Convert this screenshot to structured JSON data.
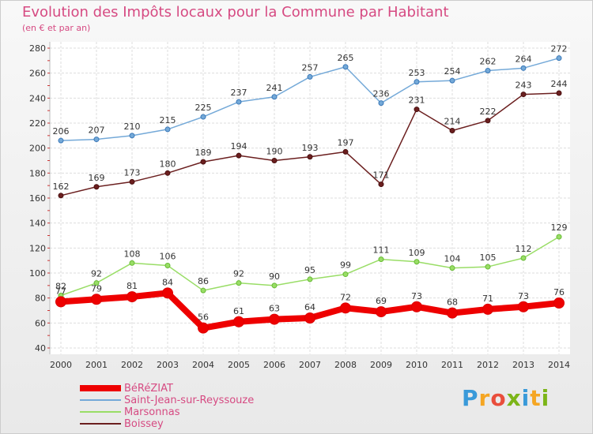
{
  "title": "Evolution des Impôts locaux pour la Commune par Habitant",
  "subtitle": "(en € et par an)",
  "brand": {
    "letters": [
      "P",
      "r",
      "o",
      "x",
      "i",
      "t",
      "i"
    ],
    "colors": [
      "#3a9ad9",
      "#f5a623",
      "#e94e3c",
      "#7cb518",
      "#3a9ad9",
      "#f5a623",
      "#7cb518"
    ]
  },
  "chart_data": {
    "type": "line",
    "title": "Evolution des Impôts locaux pour la Commune par Habitant",
    "subtitle": "(en € et par an)",
    "x": [
      "2000",
      "2001",
      "2002",
      "2003",
      "2004",
      "2005",
      "2006",
      "2007",
      "2008",
      "2009",
      "2010",
      "2011",
      "2012",
      "2013",
      "2014"
    ],
    "ylim": [
      40,
      280
    ],
    "yticks": [
      40,
      60,
      80,
      100,
      120,
      140,
      160,
      180,
      200,
      220,
      240,
      260,
      280
    ],
    "grid": true,
    "legend_position": "bottom-left",
    "series": [
      {
        "name": "BéRéZIAT",
        "color": "#ee0000",
        "values": [
          77,
          79,
          81,
          84,
          56,
          61,
          63,
          64,
          72,
          69,
          73,
          68,
          71,
          73,
          76
        ]
      },
      {
        "name": "Saint-Jean-sur-Reyssouze",
        "color": "#74a9d8",
        "values": [
          206,
          207,
          210,
          215,
          225,
          237,
          241,
          257,
          265,
          236,
          253,
          254,
          262,
          264,
          272
        ]
      },
      {
        "name": "Marsonnas",
        "color": "#99dd66",
        "values": [
          82,
          92,
          108,
          106,
          86,
          92,
          90,
          95,
          99,
          111,
          109,
          104,
          105,
          112,
          129
        ]
      },
      {
        "name": "Boissey",
        "color": "#6b1f1f",
        "values": [
          162,
          169,
          173,
          180,
          189,
          194,
          190,
          193,
          197,
          171,
          231,
          214,
          222,
          243,
          244
        ]
      }
    ]
  }
}
